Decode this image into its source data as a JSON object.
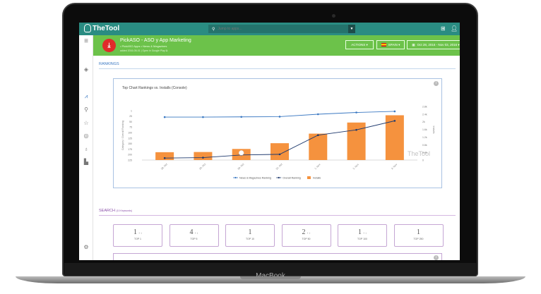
{
  "device": {
    "label": "MacBook"
  },
  "topbar": {
    "logo": "TheTool",
    "search_placeholder": "Jump to apps...",
    "icons": [
      "search-icon",
      "chevron-down-icon",
      "apps-grid-icon",
      "user-icon"
    ]
  },
  "sidebar": {
    "items": [
      {
        "icon": "menu-icon",
        "glyph": "≡"
      },
      {
        "icon": "layers-icon",
        "glyph": "◈"
      },
      {
        "icon": "chart-icon",
        "glyph": "⩘",
        "active": true
      },
      {
        "icon": "search-icon",
        "glyph": "⚲"
      },
      {
        "icon": "star-icon",
        "glyph": "☆"
      },
      {
        "icon": "gauge-icon",
        "glyph": "◎"
      },
      {
        "icon": "microphone-icon",
        "glyph": "♁"
      },
      {
        "icon": "thumbs-up-icon",
        "glyph": "▙"
      },
      {
        "icon": "gear-icon",
        "glyph": "⚙"
      }
    ]
  },
  "app": {
    "title": "PickASO - ASO y App Marketing",
    "subtitle": "• PickASO Apps • News & Magazines",
    "meta": "added 2016-05-01  |  Open in Google Play ⧉",
    "actions_label": "ACTIONS ▾",
    "country_label": "SPAIN ▾",
    "date_range_label": "Oct 28, 2016 - Nov 03, 2016 ▾"
  },
  "rankings": {
    "section_title": "RANKINGS",
    "chart_title": "Top Chart Rankings vs. Installs (Console)",
    "watermark": "TheTool"
  },
  "chart_data": {
    "type": "bar+line",
    "title": "Top Chart Rankings vs. Installs (Console)",
    "categories": [
      "28. Oct",
      "29. Oct",
      "30. Oct",
      "31. Oct",
      "1. Nov",
      "2. Nov",
      "3. Nov"
    ],
    "ylabel_left": "Category / Overall Ranking",
    "ylabel_right": "Installs",
    "left_axis": {
      "reversed": true,
      "ticks": [
        1,
        25,
        50,
        75,
        100,
        125,
        150,
        175,
        200,
        225
      ],
      "range": [
        1,
        225
      ]
    },
    "right_axis": {
      "ticks": [
        "0",
        "0.4k",
        "0.8k",
        "1.2k",
        "1.6k",
        "2k",
        "2.4k",
        "2.8k"
      ],
      "range": [
        0,
        2800
      ]
    },
    "series": [
      {
        "name": "News & Magazines Ranking",
        "type": "line",
        "axis": "left",
        "color": "#3a78c2",
        "values": [
          30,
          30,
          29,
          28,
          17,
          9,
          4
        ]
      },
      {
        "name": "Overall Ranking",
        "type": "line",
        "axis": "left",
        "color": "#1f3a6e",
        "values": [
          216,
          214,
          202,
          199,
          112,
          88,
          47
        ]
      },
      {
        "name": "Installs",
        "type": "bar",
        "axis": "right",
        "color": "#f5923e",
        "values": [
          410,
          420,
          580,
          880,
          1380,
          1960,
          2340
        ]
      }
    ],
    "legend_position": "bottom"
  },
  "search": {
    "section_title": "SEARCH",
    "keywords_note": "(10 Keywords)",
    "kpis": [
      {
        "value": "1",
        "dots": "• ↕",
        "label": "TOP 1"
      },
      {
        "value": "4",
        "dots": "• ↕",
        "label": "TOP 5"
      },
      {
        "value": "1",
        "dots": "",
        "label": "TOP 10"
      },
      {
        "value": "2",
        "dots": "• ↕",
        "label": "TOP 50"
      },
      {
        "value": "1",
        "dots": "• ↕",
        "label": "TOP 100"
      },
      {
        "value": "1",
        "dots": "",
        "label": "TOP 250"
      }
    ]
  }
}
